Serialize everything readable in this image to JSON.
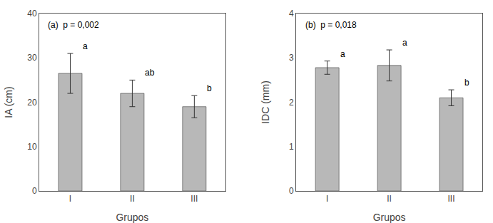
{
  "chart_data": [
    {
      "type": "bar",
      "categories": [
        "I",
        "II",
        "III"
      ],
      "values": [
        26.5,
        22.0,
        19.0
      ],
      "errors": [
        4.5,
        3.0,
        2.5
      ],
      "sig_labels": [
        "a",
        "ab",
        "b"
      ],
      "annotation": "(a)  p = 0,002",
      "xlabel": "Grupos",
      "ylabel": "IA (cm)",
      "ylim": [
        0,
        40
      ],
      "yticks": [
        0,
        10,
        20,
        30,
        40
      ],
      "color": "#b8b8b8",
      "grid": false
    },
    {
      "type": "bar",
      "categories": [
        "I",
        "II",
        "III"
      ],
      "values": [
        2.78,
        2.83,
        2.1
      ],
      "errors": [
        0.15,
        0.35,
        0.18
      ],
      "sig_labels": [
        "a",
        "a",
        "b"
      ],
      "annotation": "(b)  p = 0,018",
      "xlabel": "Grupos",
      "ylabel": "IDC (mm)",
      "ylim": [
        0,
        4
      ],
      "yticks": [
        0,
        1,
        2,
        3,
        4
      ],
      "color": "#b8b8b8",
      "grid": false
    }
  ]
}
